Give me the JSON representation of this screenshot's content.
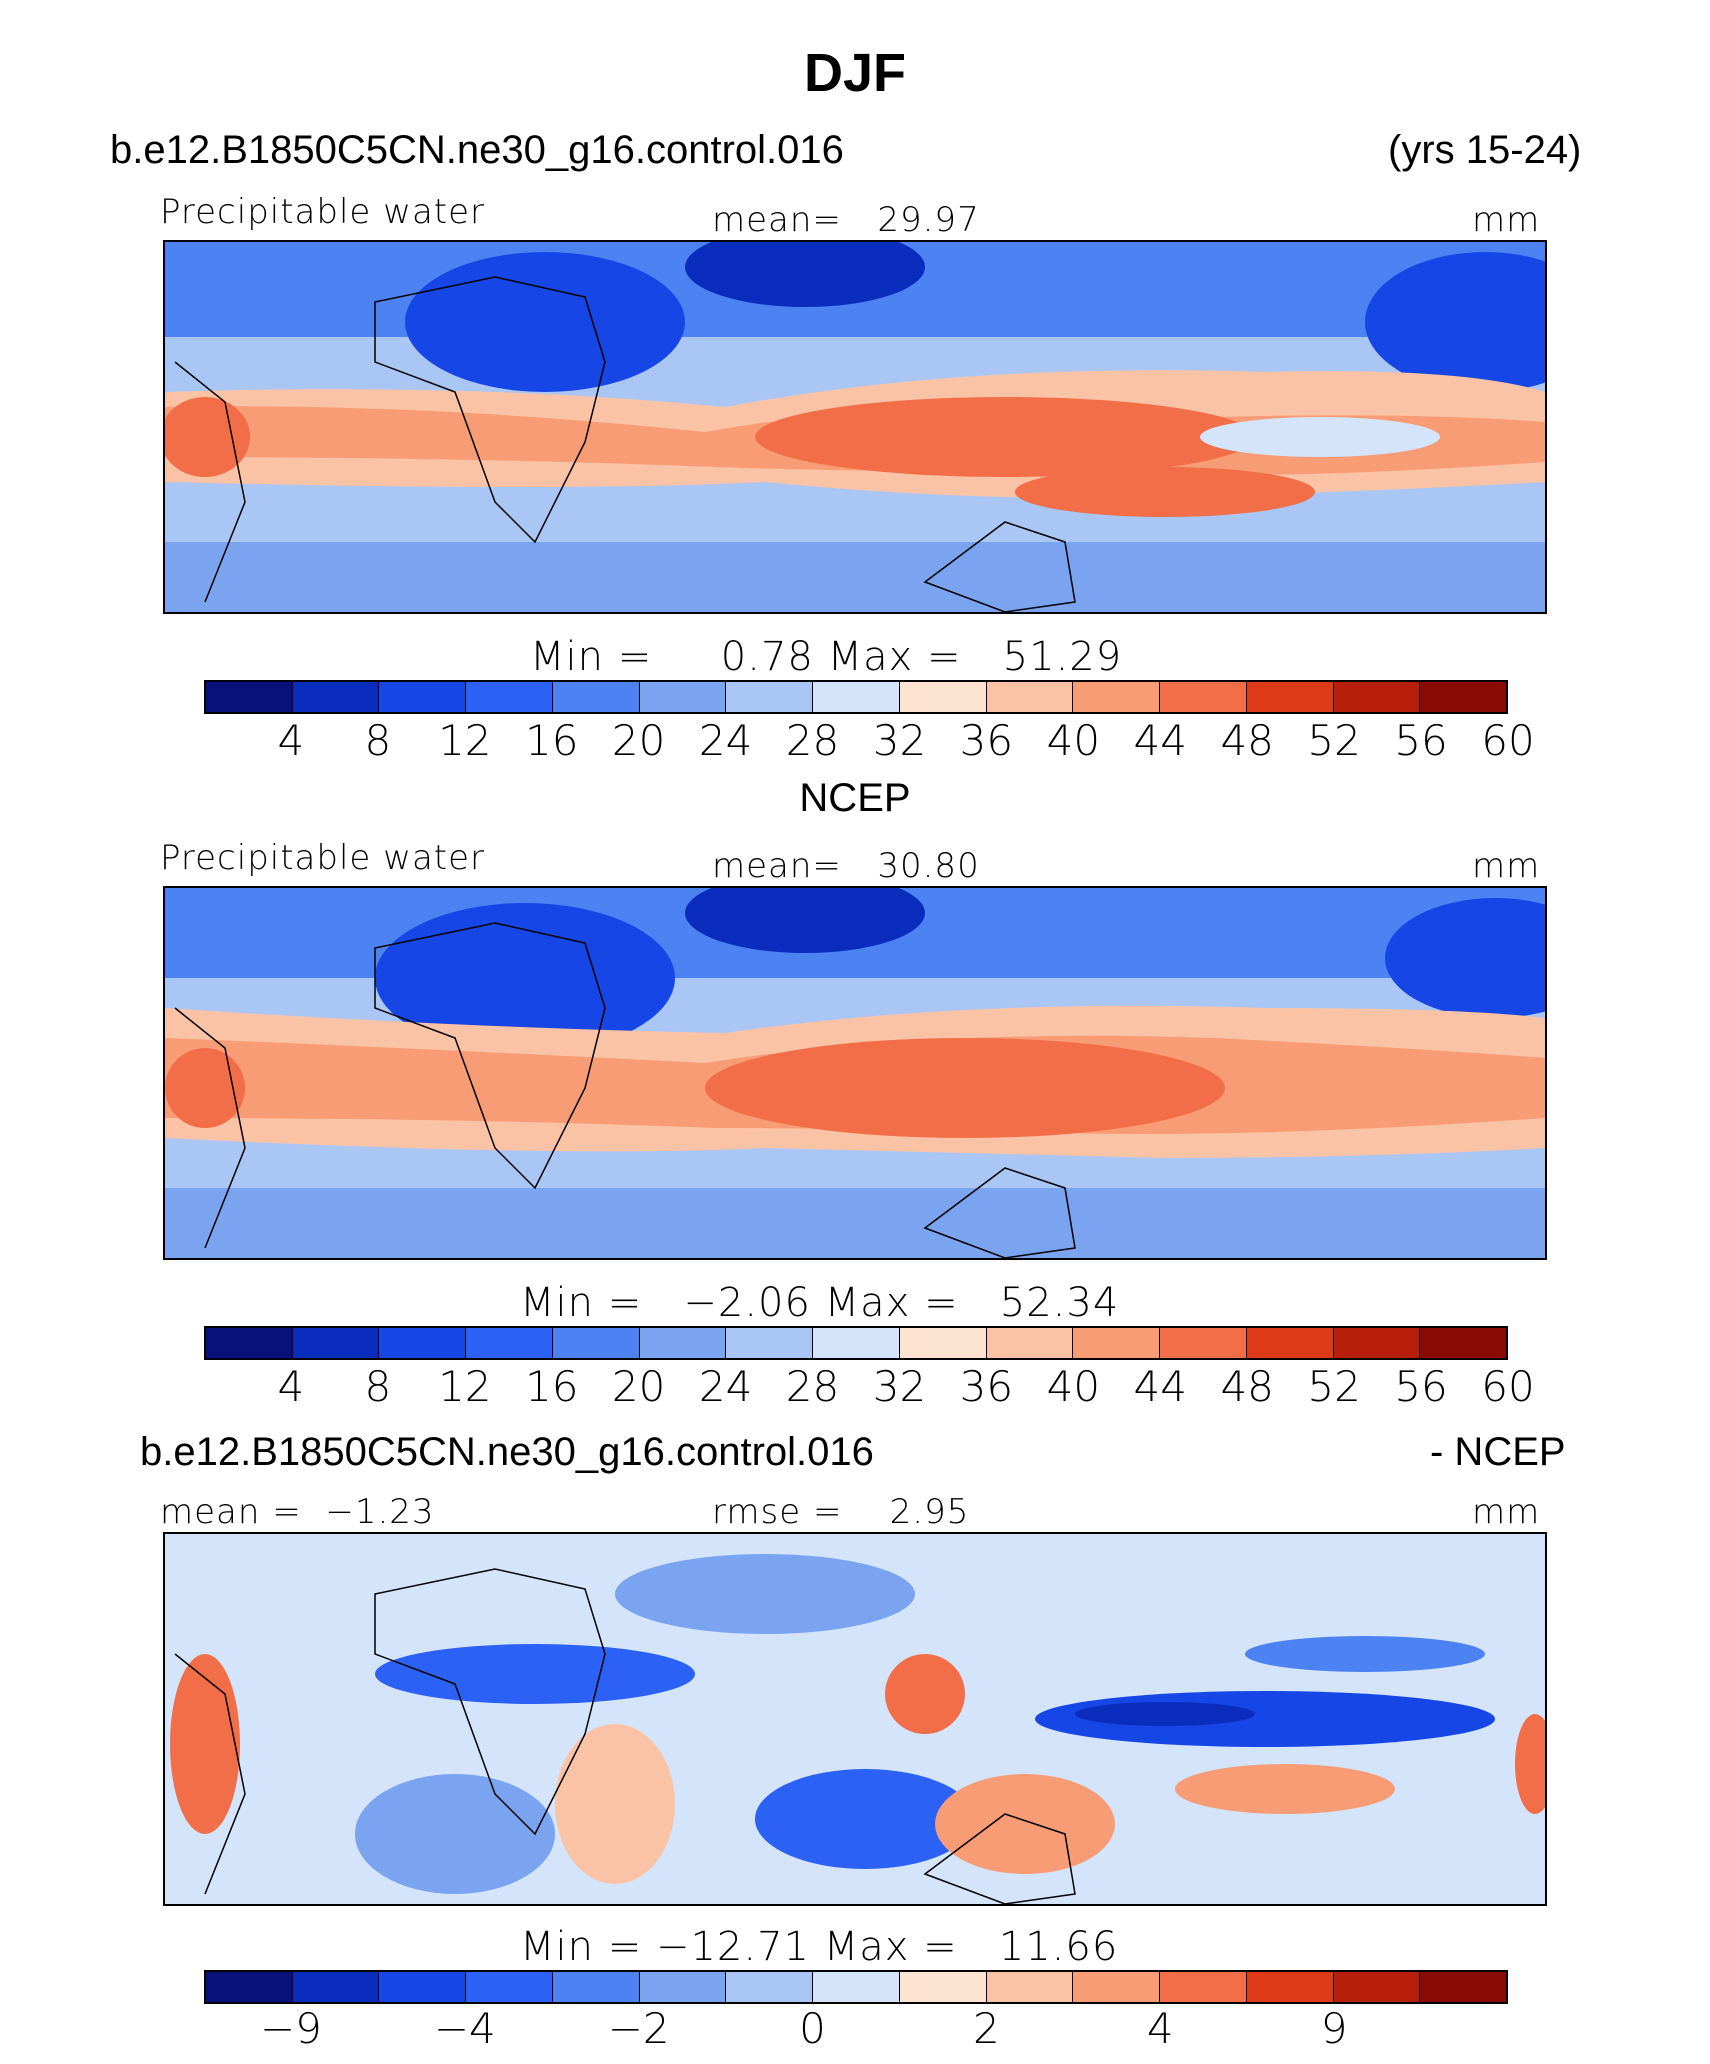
{
  "figure": {
    "title": "DJF",
    "case_name": "b.e12.B1850C5CN.ne30_g16.control.016",
    "years": "(yrs 15-24)"
  },
  "panels": [
    {
      "variable": "Precipitable water",
      "mean_label": "mean=",
      "mean_value": "29.97",
      "units": "mm",
      "min_label": "Min =",
      "min_value": "0.78",
      "max_label": "Max =",
      "max_value": "51.29",
      "colorbar_ticks": [
        "4",
        "8",
        "12",
        "16",
        "20",
        "24",
        "28",
        "32",
        "36",
        "40",
        "44",
        "48",
        "52",
        "56",
        "60"
      ],
      "map_description": "Global precipitable water field, cool blues at high latitudes and warm reds along the tropics"
    },
    {
      "source": "NCEP",
      "variable": "Precipitable water",
      "mean_label": "mean=",
      "mean_value": "30.80",
      "units": "mm",
      "min_label": "Min =",
      "min_value": "−2.06",
      "max_label": "Max =",
      "max_value": "52.34",
      "colorbar_ticks": [
        "4",
        "8",
        "12",
        "16",
        "20",
        "24",
        "28",
        "32",
        "36",
        "40",
        "44",
        "48",
        "52",
        "56",
        "60"
      ]
    },
    {
      "left_title": "b.e12.B1850C5CN.ne30_g16.control.016",
      "right_title": "- NCEP",
      "mean_label": "mean =",
      "mean_value": "−1.23",
      "rmse_label": "rmse =",
      "rmse_value": "2.95",
      "units": "mm",
      "min_label": "Min =",
      "min_value": "−12.71",
      "max_label": "Max =",
      "max_value": "11.66",
      "colorbar_ticks": [
        "−9",
        "",
        "−4",
        "",
        "−2",
        "",
        "0",
        "",
        "2",
        "",
        "4",
        "",
        "9",
        "",
        ""
      ]
    }
  ],
  "colors": {
    "colorbar": [
      "#08107a",
      "#0a2dbe",
      "#1646e6",
      "#2b62f5",
      "#4d82f2",
      "#7aa3f0",
      "#aac6f5",
      "#d4e4fb",
      "#fde4d2",
      "#fbc3a5",
      "#f89c76",
      "#f16e48",
      "#de3a18",
      "#b81e0c",
      "#8a0a06"
    ]
  }
}
